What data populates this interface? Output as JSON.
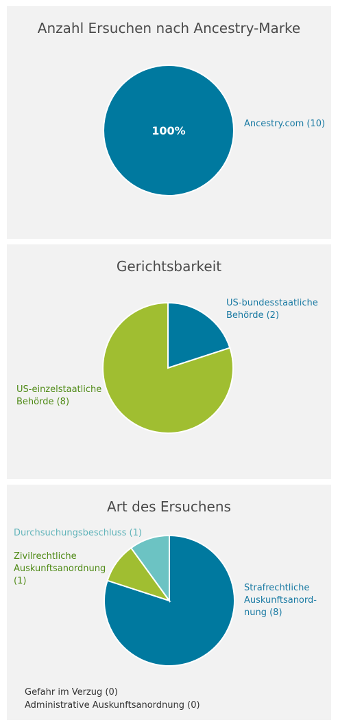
{
  "chart_data": [
    {
      "type": "pie",
      "title": "Anzahl Ersuchen nach Ancestry-Marke",
      "slices": [
        {
          "label": "Ancestry.com (10)",
          "value": 10,
          "color": "#00799f",
          "display_pct": "100%"
        }
      ]
    },
    {
      "type": "pie",
      "title": "Gerichtsbarkeit",
      "slices": [
        {
          "label": "US-bundesstaatliche Behörde (2)",
          "value": 2,
          "color": "#00799f"
        },
        {
          "label": "US-einzelstaatliche Behörde (8)",
          "value": 8,
          "color": "#a0be31"
        }
      ]
    },
    {
      "type": "pie",
      "title": "Art des Ersuchens",
      "slices": [
        {
          "label": "Strafrechtliche Auskunftsanordnung (8)",
          "value": 8,
          "color": "#00799f"
        },
        {
          "label": "Zivilrechtliche Auskunftsanordnung (1)",
          "value": 1,
          "color": "#a0be31"
        },
        {
          "label": "Durchsuchungsbeschluss (1)",
          "value": 1,
          "color": "#6cc3c3"
        }
      ],
      "zero_items": [
        "Gefahr im Verzug (0)",
        "Administrative Auskunftsanordnung (0)"
      ]
    }
  ],
  "panel1": {
    "title": "Anzahl Ersuchen nach Ancestry-Marke",
    "label": "Ancestry.com (10)",
    "pct": "100%"
  },
  "panel2": {
    "title": "Gerichtsbarkeit",
    "label_fed_line1": "US-bundesstaatliche",
    "label_fed_line2": "Behörde (2)",
    "label_state_line1": "US-einzelstaatliche",
    "label_state_line2": "Behörde (8)"
  },
  "panel3": {
    "title": "Art des Ersuchens",
    "label_search": "Durchsuchungsbeschluss (1)",
    "label_civil_line1": "Zivilrechtliche",
    "label_civil_line2": "Auskunftsanordnung",
    "label_civil_line3": "(1)",
    "label_crim_line1": "Strafrechtliche",
    "label_crim_line2": "Auskunftsanord-",
    "label_crim_line3": "nung (8)",
    "zero_1": "Gefahr im Verzug (0)",
    "zero_2": "Administrative Auskunftsanordnung (0)"
  }
}
